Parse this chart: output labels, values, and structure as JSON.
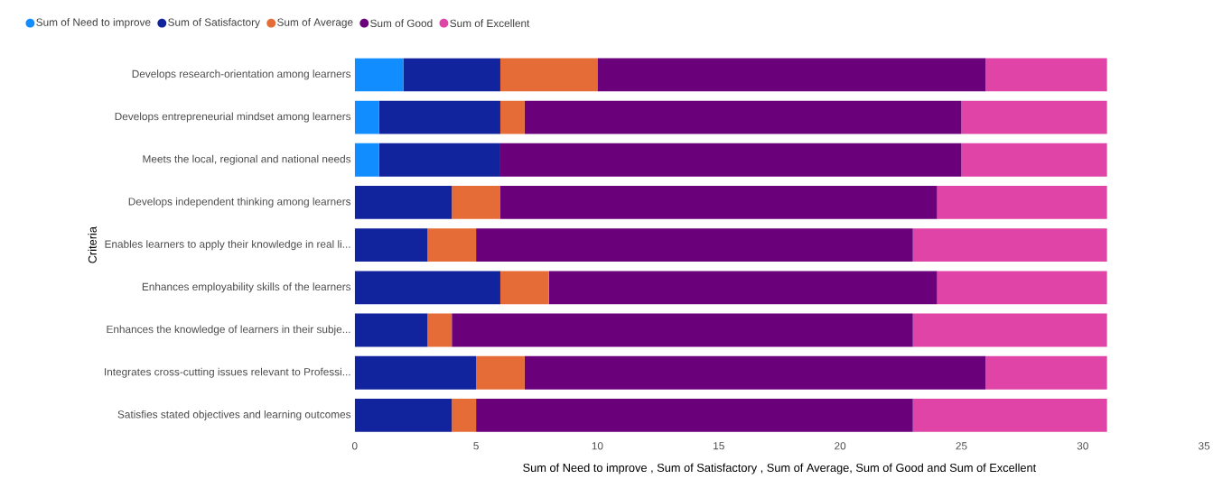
{
  "chart_data": {
    "type": "bar",
    "orientation": "horizontal",
    "stacked": true,
    "ylabel": "Criteria",
    "xlabel": "Sum of Need to improve , Sum of Satisfactory , Sum of Average, Sum of Good  and Sum of Excellent",
    "categories": [
      "Develops research-orientation among learners",
      "Develops entrepreneurial mindset among learners",
      "Meets the local, regional and national needs",
      "Develops independent thinking among learners",
      "Enables learners to apply their knowledge in real li...",
      "Enhances employability skills of the learners",
      "Enhances the knowledge of learners in their subje...",
      "Integrates cross-cutting issues relevant to Professi...",
      "Satisfies stated objectives and learning outcomes"
    ],
    "series": [
      {
        "name": "Sum of Need to improve",
        "color": "#118dff",
        "values": [
          2,
          1,
          1,
          0,
          0,
          0,
          0,
          0,
          0
        ]
      },
      {
        "name": "Sum of Satisfactory",
        "color": "#12239e",
        "values": [
          4,
          5,
          5,
          4,
          3,
          6,
          3,
          5,
          4
        ]
      },
      {
        "name": "Sum of Average",
        "color": "#e66c37",
        "values": [
          4,
          1,
          0,
          2,
          2,
          2,
          1,
          2,
          1
        ]
      },
      {
        "name": "Sum of Good",
        "color": "#6b007b",
        "values": [
          16,
          18,
          19,
          18,
          18,
          16,
          19,
          19,
          18
        ]
      },
      {
        "name": "Sum of Excellent",
        "color": "#e044a7",
        "values": [
          5,
          6,
          6,
          7,
          8,
          7,
          8,
          5,
          8
        ]
      }
    ],
    "xlim": [
      0,
      35
    ],
    "xticks": [
      0,
      5,
      10,
      15,
      20,
      25,
      30,
      35
    ],
    "grid": false,
    "legend": "top left",
    "marker": "circle"
  }
}
